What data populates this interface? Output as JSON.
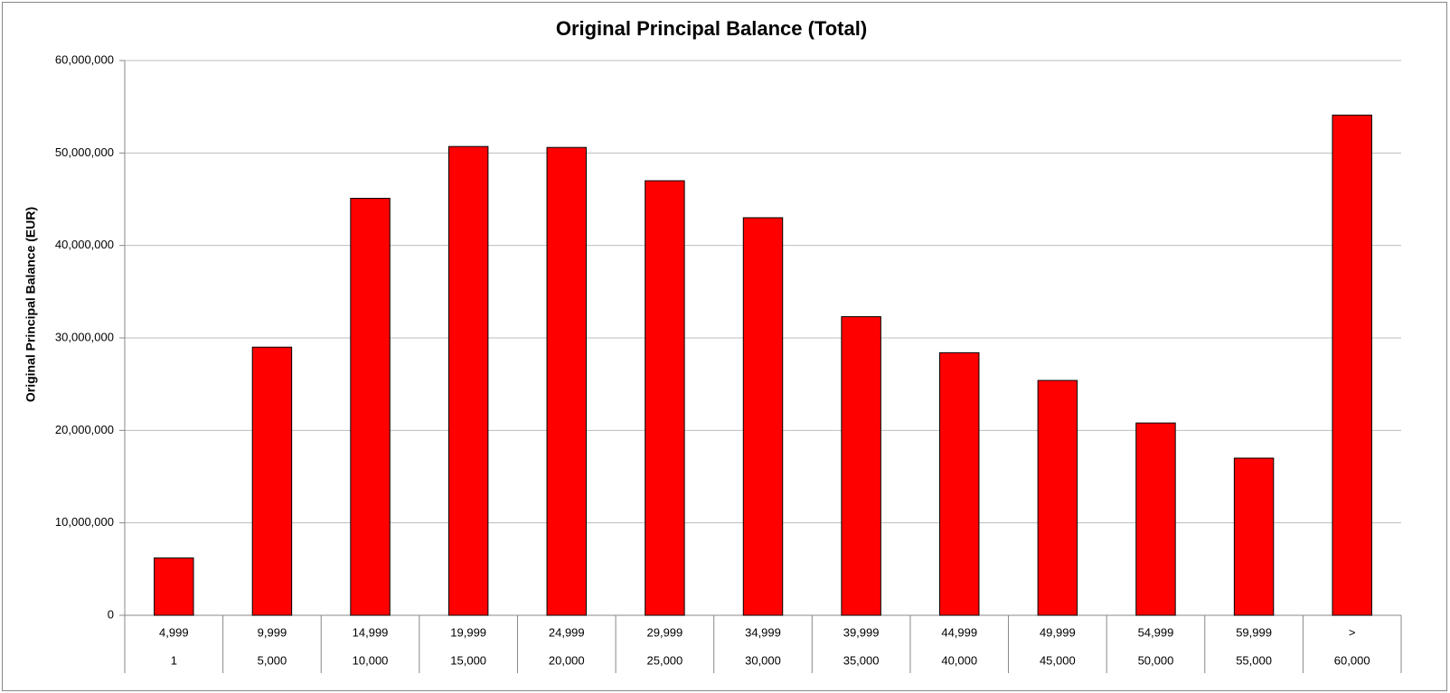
{
  "chart_data": {
    "type": "bar",
    "title": "Original Principal Balance (Total)",
    "y_label": "Original Principal Balance (EUR)",
    "categories": [
      {
        "upper": "4,999",
        "lower": "1"
      },
      {
        "upper": "9,999",
        "lower": "5,000"
      },
      {
        "upper": "14,999",
        "lower": "10,000"
      },
      {
        "upper": "19,999",
        "lower": "15,000"
      },
      {
        "upper": "24,999",
        "lower": "20,000"
      },
      {
        "upper": "29,999",
        "lower": "25,000"
      },
      {
        "upper": "34,999",
        "lower": "30,000"
      },
      {
        "upper": "39,999",
        "lower": "35,000"
      },
      {
        "upper": "44,999",
        "lower": "40,000"
      },
      {
        "upper": "49,999",
        "lower": "45,000"
      },
      {
        "upper": "54,999",
        "lower": "50,000"
      },
      {
        "upper": "59,999",
        "lower": "55,000"
      },
      {
        "upper": ">",
        "lower": "60,000"
      }
    ],
    "values": [
      6200000,
      29000000,
      45100000,
      50700000,
      50600000,
      47000000,
      43000000,
      32300000,
      28400000,
      25400000,
      20800000,
      17000000,
      54100000
    ],
    "color": "#ff0000",
    "ylim": [
      0,
      60000000
    ],
    "yticks": [
      0,
      {
        "value": 10000000,
        "label": "10,000,000"
      },
      {
        "value": 20000000,
        "label": "20,000,000"
      },
      {
        "value": 30000000,
        "label": "30,000,000"
      },
      {
        "value": 40000000,
        "label": "40,000,000"
      },
      {
        "value": 50000000,
        "label": "50,000,000"
      },
      {
        "value": 60000000,
        "label": "60,000,000"
      }
    ],
    "grid": true
  }
}
